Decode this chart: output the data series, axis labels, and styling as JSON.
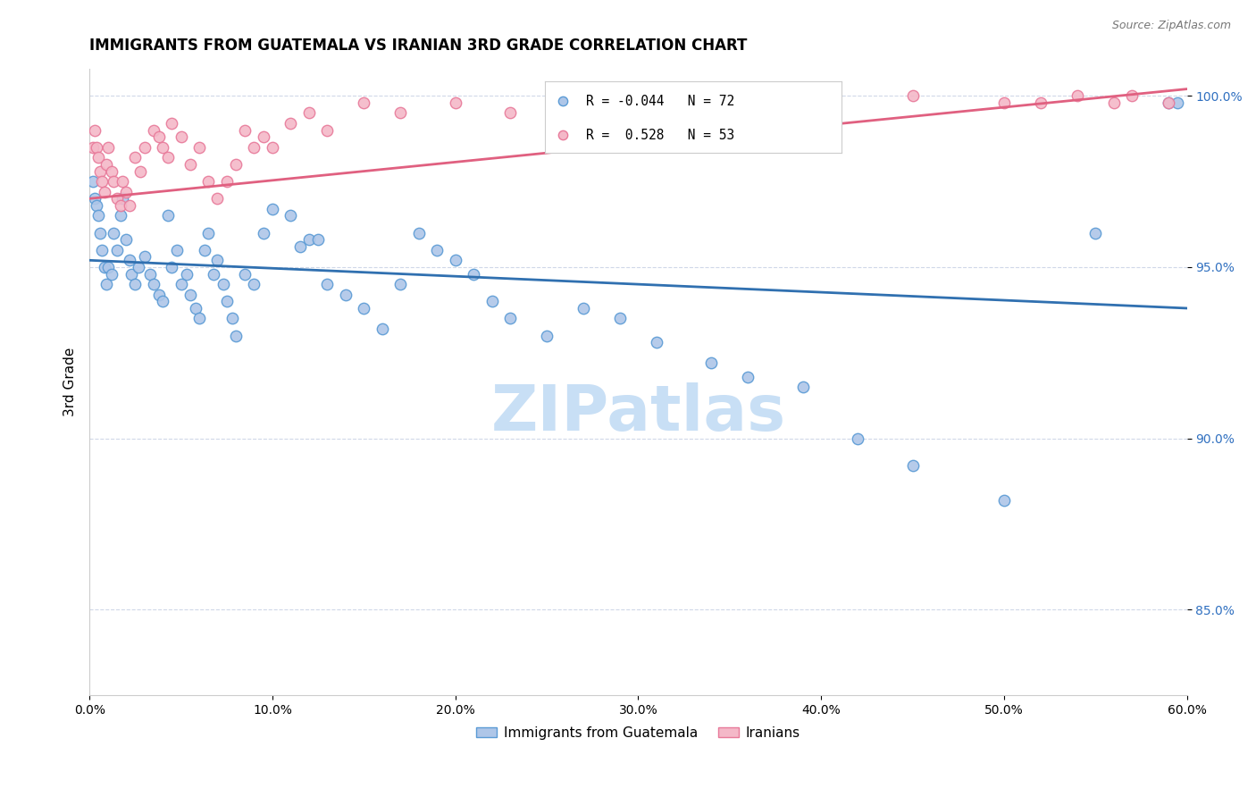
{
  "title": "IMMIGRANTS FROM GUATEMALA VS IRANIAN 3RD GRADE CORRELATION CHART",
  "source": "Source: ZipAtlas.com",
  "ylabel": "3rd Grade",
  "xlim": [
    0.0,
    0.6
  ],
  "ylim": [
    0.825,
    1.008
  ],
  "xtick_vals": [
    0.0,
    0.1,
    0.2,
    0.3,
    0.4,
    0.5,
    0.6
  ],
  "ytick_vals": [
    0.85,
    0.9,
    0.95,
    1.0
  ],
  "blue_R": -0.044,
  "blue_N": 72,
  "pink_R": 0.528,
  "pink_N": 53,
  "blue_color": "#aec6e8",
  "blue_edge_color": "#5b9bd5",
  "pink_color": "#f4b8c8",
  "pink_edge_color": "#e87a9a",
  "blue_line_color": "#3070b0",
  "pink_line_color": "#e06080",
  "watermark_color": "#c8dff5",
  "blue_scatter_x": [
    0.002,
    0.003,
    0.004,
    0.005,
    0.006,
    0.007,
    0.008,
    0.009,
    0.01,
    0.012,
    0.013,
    0.015,
    0.017,
    0.018,
    0.02,
    0.022,
    0.023,
    0.025,
    0.027,
    0.03,
    0.033,
    0.035,
    0.038,
    0.04,
    0.043,
    0.045,
    0.048,
    0.05,
    0.053,
    0.055,
    0.058,
    0.06,
    0.063,
    0.065,
    0.068,
    0.07,
    0.073,
    0.075,
    0.078,
    0.08,
    0.085,
    0.09,
    0.095,
    0.1,
    0.11,
    0.115,
    0.12,
    0.125,
    0.13,
    0.14,
    0.15,
    0.16,
    0.17,
    0.18,
    0.19,
    0.2,
    0.21,
    0.22,
    0.23,
    0.25,
    0.27,
    0.29,
    0.31,
    0.34,
    0.36,
    0.39,
    0.42,
    0.45,
    0.5,
    0.55,
    0.59,
    0.595
  ],
  "blue_scatter_y": [
    0.975,
    0.97,
    0.968,
    0.965,
    0.96,
    0.955,
    0.95,
    0.945,
    0.95,
    0.948,
    0.96,
    0.955,
    0.965,
    0.97,
    0.958,
    0.952,
    0.948,
    0.945,
    0.95,
    0.953,
    0.948,
    0.945,
    0.942,
    0.94,
    0.965,
    0.95,
    0.955,
    0.945,
    0.948,
    0.942,
    0.938,
    0.935,
    0.955,
    0.96,
    0.948,
    0.952,
    0.945,
    0.94,
    0.935,
    0.93,
    0.948,
    0.945,
    0.96,
    0.967,
    0.965,
    0.956,
    0.958,
    0.958,
    0.945,
    0.942,
    0.938,
    0.932,
    0.945,
    0.96,
    0.955,
    0.952,
    0.948,
    0.94,
    0.935,
    0.93,
    0.938,
    0.935,
    0.928,
    0.922,
    0.918,
    0.915,
    0.9,
    0.892,
    0.882,
    0.96,
    0.998,
    0.998
  ],
  "pink_scatter_x": [
    0.002,
    0.003,
    0.004,
    0.005,
    0.006,
    0.007,
    0.008,
    0.009,
    0.01,
    0.012,
    0.013,
    0.015,
    0.017,
    0.018,
    0.02,
    0.022,
    0.025,
    0.028,
    0.03,
    0.035,
    0.038,
    0.04,
    0.043,
    0.045,
    0.05,
    0.055,
    0.06,
    0.065,
    0.07,
    0.075,
    0.08,
    0.085,
    0.09,
    0.095,
    0.1,
    0.11,
    0.12,
    0.13,
    0.15,
    0.17,
    0.2,
    0.23,
    0.26,
    0.29,
    0.35,
    0.4,
    0.45,
    0.5,
    0.52,
    0.54,
    0.56,
    0.57,
    0.59
  ],
  "pink_scatter_y": [
    0.985,
    0.99,
    0.985,
    0.982,
    0.978,
    0.975,
    0.972,
    0.98,
    0.985,
    0.978,
    0.975,
    0.97,
    0.968,
    0.975,
    0.972,
    0.968,
    0.982,
    0.978,
    0.985,
    0.99,
    0.988,
    0.985,
    0.982,
    0.992,
    0.988,
    0.98,
    0.985,
    0.975,
    0.97,
    0.975,
    0.98,
    0.99,
    0.985,
    0.988,
    0.985,
    0.992,
    0.995,
    0.99,
    0.998,
    0.995,
    0.998,
    0.995,
    0.998,
    1.0,
    0.998,
    0.998,
    1.0,
    0.998,
    0.998,
    1.0,
    0.998,
    1.0,
    0.998
  ],
  "blue_trendline_x": [
    0.0,
    0.6
  ],
  "blue_trendline_y": [
    0.952,
    0.938
  ],
  "pink_trendline_x": [
    0.0,
    0.6
  ],
  "pink_trendline_y": [
    0.97,
    1.002
  ],
  "marker_size": 80,
  "figsize": [
    14.06,
    8.92
  ],
  "dpi": 100
}
